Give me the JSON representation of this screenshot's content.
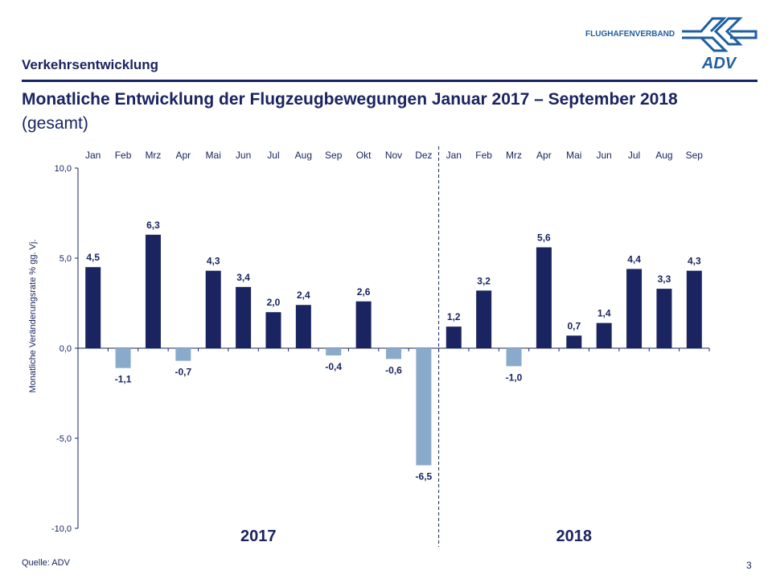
{
  "header": {
    "section": "Verkehrsentwicklung",
    "title": "Monatliche Entwicklung der Flugzeugbewegungen Januar 2017 – September 2018",
    "subtitle": "(gesamt)",
    "logo_text": "FLUGHAFENVERBAND",
    "logo_mark": "ADV"
  },
  "footer": {
    "source": "Quelle: ADV",
    "page": "3"
  },
  "colors": {
    "positive": "#1a2460",
    "negative": "#8aaacb",
    "text": "#1a2460"
  },
  "chart_data": {
    "type": "bar",
    "categories": [
      "Jan",
      "Feb",
      "Mrz",
      "Apr",
      "Mai",
      "Jun",
      "Jul",
      "Aug",
      "Sep",
      "Okt",
      "Nov",
      "Dez",
      "Jan",
      "Feb",
      "Mrz",
      "Apr",
      "Mai",
      "Jun",
      "Jul",
      "Aug",
      "Sep"
    ],
    "values": [
      4.5,
      -1.1,
      6.3,
      -0.7,
      4.3,
      3.4,
      2.0,
      2.4,
      -0.4,
      2.6,
      -0.6,
      -6.5,
      1.2,
      3.2,
      -1.0,
      5.6,
      0.7,
      1.4,
      4.4,
      3.3,
      4.3
    ],
    "data_labels": [
      "4,5",
      "-1,1",
      "6,3",
      "-0,7",
      "4,3",
      "3,4",
      "2,0",
      "2,4",
      "-0,4",
      "2,6",
      "-0,6",
      "-6,5",
      "1,2",
      "3,2",
      "-1,0",
      "5,6",
      "0,7",
      "1,4",
      "4,4",
      "3,3",
      "4,3"
    ],
    "ylabel": "Monatliche Veränderungsrate % gg. Vj.",
    "ylim": [
      -10,
      10
    ],
    "yticks": [
      10,
      5,
      0,
      -5,
      -10
    ],
    "ytick_labels": [
      "10,0",
      "5,0",
      "0,0",
      "-5,0",
      "-10,0"
    ],
    "groups": [
      {
        "label": "2017",
        "count": 12
      },
      {
        "label": "2018",
        "count": 9
      }
    ],
    "grid": false,
    "legend": "none"
  }
}
